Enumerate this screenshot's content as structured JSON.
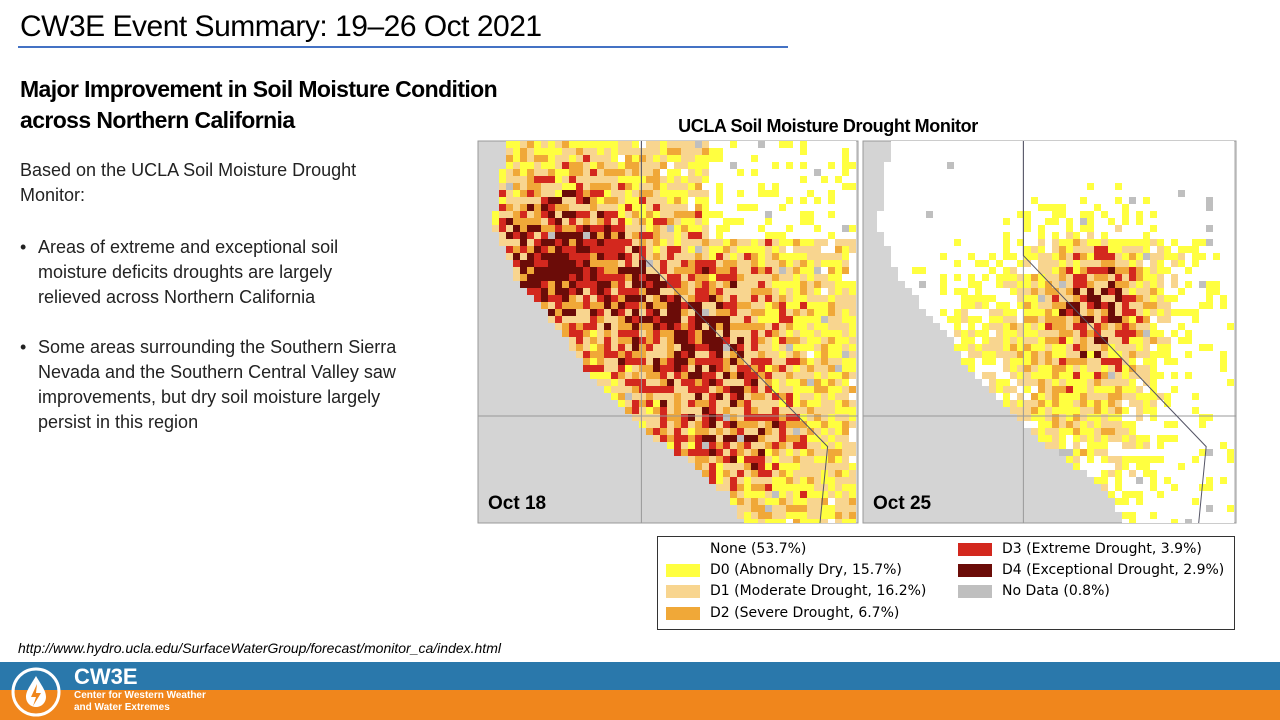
{
  "header": {
    "title": "CW3E Event Summary: 19–26 Oct 2021"
  },
  "content": {
    "heading": [
      "Major Improvement in Soil Moisture Condition",
      "across Northern California"
    ],
    "intro": "Based on the UCLA Soil Moisture Drought Monitor:",
    "bullets": [
      "Areas of extreme and exceptional soil moisture deficits droughts are largely relieved across Northern California",
      "Some areas surrounding the Southern Sierra Nevada and the Southern Central Valley saw improvements, but dry soil moisture largely persist in this region"
    ]
  },
  "figure": {
    "title": "UCLA Soil Moisture Drought Monitor",
    "maps": [
      {
        "label": "Oct 18"
      },
      {
        "label": "Oct 25"
      }
    ],
    "legend": [
      {
        "label": "None (53.7%)",
        "color": "#ffffff"
      },
      {
        "label": "D0 (Abnomally Dry, 15.7%)",
        "color": "#ffff40"
      },
      {
        "label": "D1 (Moderate Drought, 16.2%)",
        "color": "#f8d58f"
      },
      {
        "label": "D2 (Severe Drought, 6.7%)",
        "color": "#f0a838"
      },
      {
        "label": "D3 (Extreme Drought, 3.9%)",
        "color": "#d3281e"
      },
      {
        "label": "D4 (Exceptional Drought, 2.9%)",
        "color": "#6b0c08"
      },
      {
        "label": "No Data (0.8%)",
        "color": "#bfbfbf"
      }
    ]
  },
  "source": "http://www.hydro.ucla.edu/SurfaceWaterGroup/forecast/monitor_ca/index.html",
  "footer": {
    "brand": "CW3E",
    "tagline": [
      "Center for Western Weather",
      "and Water Extremes"
    ]
  }
}
